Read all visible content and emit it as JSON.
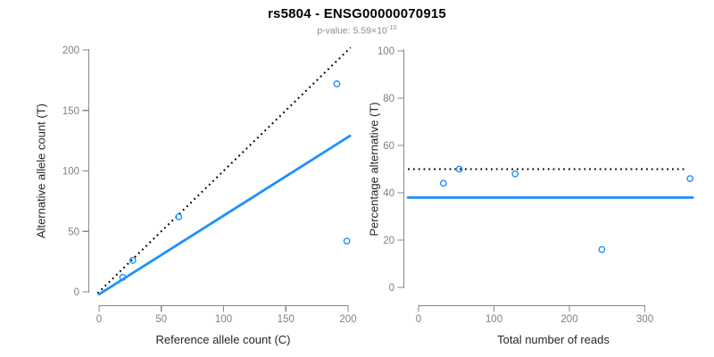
{
  "title": "rs5804 - ENSG00000070915",
  "subtitle": {
    "text": "p-value: 5.59×10",
    "exponent": "-10"
  },
  "colors": {
    "accent_blue": "#1E90FF",
    "dotted_line": "#000000",
    "axis_gray": "#878787",
    "tick_label_gray": "#808080",
    "subtitle_gray": "#8C8C8C"
  },
  "chart_data": [
    {
      "type": "scatter",
      "xlabel": "Reference allele count (C)",
      "ylabel": "Alternative allele count (T)",
      "xlim": [
        0,
        200
      ],
      "ylim": [
        0,
        200
      ],
      "xticks": [
        0,
        50,
        100,
        150,
        200
      ],
      "yticks": [
        0,
        50,
        100,
        150,
        200
      ],
      "points": [
        [
          19,
          12
        ],
        [
          27,
          26
        ],
        [
          64,
          62
        ],
        [
          191,
          172
        ],
        [
          199,
          42
        ]
      ],
      "identity_line": {
        "style": "dotted",
        "color": "#000000",
        "slope": 1,
        "intercept": 0
      },
      "fit_line": {
        "style": "solid",
        "color": "#1E90FF",
        "slope": 0.65,
        "intercept": -2
      },
      "grid": false,
      "legend": "none"
    },
    {
      "type": "scatter",
      "xlabel": "Total number of reads",
      "ylabel": "Percentage alternative (T)",
      "xlim": [
        0,
        360
      ],
      "ylim": [
        0,
        100
      ],
      "xticks": [
        0,
        100,
        200,
        300
      ],
      "yticks": [
        0,
        20,
        40,
        60,
        80,
        100
      ],
      "points": [
        [
          33,
          44
        ],
        [
          54,
          50
        ],
        [
          128,
          48
        ],
        [
          243,
          16
        ],
        [
          360,
          46
        ]
      ],
      "reference_line": {
        "style": "dotted",
        "color": "#000000",
        "y": 50
      },
      "fit_line": {
        "style": "solid",
        "color": "#1E90FF",
        "y": 38
      },
      "grid": false,
      "legend": "none"
    }
  ]
}
